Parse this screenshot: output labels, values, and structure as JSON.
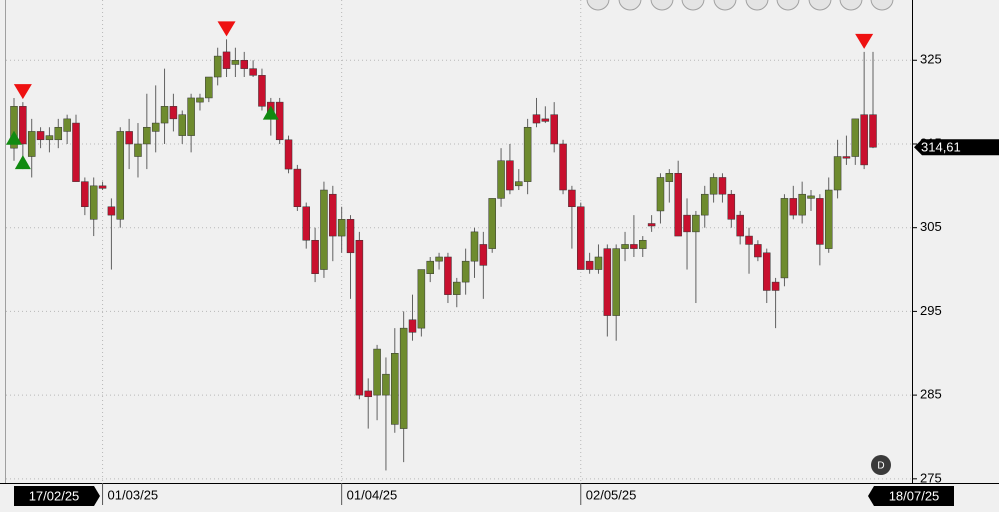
{
  "chart_data": {
    "type": "candlestick",
    "categories": [
      "17/02/25",
      null,
      null,
      null,
      null,
      null,
      null,
      null,
      null,
      null,
      "01/03/25",
      null,
      null,
      null,
      null,
      null,
      null,
      null,
      null,
      null,
      null,
      null,
      null,
      null,
      null,
      null,
      null,
      null,
      null,
      null,
      null,
      null,
      null,
      null,
      null,
      null,
      null,
      "01/04/25",
      null,
      null,
      null,
      null,
      null,
      null,
      null,
      null,
      null,
      null,
      null,
      null,
      null,
      null,
      null,
      null,
      null,
      null,
      null,
      null,
      null,
      null,
      null,
      null,
      null,
      null,
      "02/05/25",
      null,
      null,
      null,
      null,
      null,
      null,
      null,
      null,
      null,
      null,
      null,
      null,
      null,
      null,
      null,
      null,
      null,
      null,
      null,
      null,
      null,
      null,
      null,
      null,
      null,
      null,
      null,
      null,
      null,
      null,
      null,
      null,
      "18/07/25"
    ],
    "open": [
      314.5,
      319.5,
      313.5,
      316.5,
      315.5,
      315.5,
      316.5,
      317.5,
      310.5,
      306,
      310,
      307.5,
      306,
      316.5,
      313.5,
      315,
      316.5,
      317.5,
      319.5,
      316,
      316,
      320,
      320.5,
      323,
      326,
      324.5,
      325,
      324,
      323.2,
      320,
      320,
      315.5,
      312,
      307.5,
      303.5,
      300,
      309,
      304,
      306,
      303.5,
      285.5,
      285,
      285,
      281.5,
      281,
      294,
      293,
      299.5,
      301,
      301.5,
      297,
      298.5,
      301,
      303,
      302.5,
      308.5,
      313,
      310,
      310.5,
      318.5,
      318,
      318.5,
      315,
      309.5,
      307.5,
      301,
      300,
      302.5,
      294.5,
      302.5,
      303,
      302.5,
      305.5,
      307,
      310.5,
      311.5,
      306.5,
      304.5,
      306.5,
      309,
      311,
      309,
      306.5,
      304,
      303,
      302,
      298.5,
      299,
      308.5,
      306.5,
      308.5,
      308.5,
      302.5,
      309.5,
      313.5,
      313.5,
      318.5,
      318.5
    ],
    "high": [
      320.5,
      320,
      318,
      317,
      317,
      318,
      318.5,
      318.5,
      311,
      311,
      310.5,
      308.5,
      317,
      318,
      317.5,
      321,
      322,
      324,
      321,
      319,
      321,
      321,
      323,
      326.5,
      327.5,
      326.5,
      326,
      325,
      324,
      320.5,
      320.5,
      316,
      312.5,
      308,
      305,
      310.5,
      310,
      307.5,
      306.5,
      304.5,
      287,
      291,
      289.5,
      293,
      295,
      297,
      300,
      301.5,
      302,
      302,
      299,
      302.5,
      305,
      304.5,
      308.5,
      314.5,
      315,
      312,
      318,
      320.5,
      319.5,
      320,
      315.5,
      310,
      308,
      302,
      303,
      303,
      303,
      304.5,
      306.5,
      304,
      306.5,
      311.5,
      312,
      313,
      308.5,
      307,
      310,
      311.5,
      311.5,
      309.5,
      307,
      305,
      303.5,
      302.5,
      299,
      309,
      310,
      310.5,
      309.5,
      309,
      311,
      315.5,
      316,
      318,
      326,
      326
    ],
    "low": [
      313,
      312,
      311,
      314.5,
      314,
      314.5,
      315,
      310.5,
      306.5,
      304,
      309.5,
      300,
      305,
      312,
      311,
      312,
      314,
      315,
      316.5,
      315,
      314,
      319,
      320,
      322,
      323,
      323,
      323,
      323,
      319,
      316,
      315,
      311.5,
      307,
      302.5,
      298.5,
      299,
      301,
      302,
      296.5,
      284.5,
      281,
      282,
      276,
      280.5,
      277,
      291.5,
      292,
      298.5,
      300,
      296,
      295.5,
      297,
      299,
      296.5,
      302,
      307.5,
      309,
      309.5,
      309,
      317,
      317.5,
      314,
      309,
      302.5,
      300,
      299.5,
      299.5,
      292,
      291.5,
      301,
      301.5,
      301.5,
      304.5,
      305.5,
      308,
      304,
      300,
      296,
      305,
      308,
      308,
      305,
      303,
      299.5,
      301,
      296,
      293,
      298,
      306,
      305.5,
      307,
      300.5,
      302,
      308.5,
      312.5,
      312.5,
      312,
      314.5
    ],
    "close": [
      319.5,
      315,
      316.5,
      315.5,
      316,
      317,
      318,
      310.5,
      307.5,
      310,
      309.7,
      306.5,
      316.5,
      315,
      315,
      317,
      317.5,
      319.5,
      318,
      318.5,
      320.5,
      320.5,
      323,
      325.5,
      324,
      325,
      324,
      323.2,
      319.5,
      318,
      315.5,
      312,
      307.5,
      303.5,
      299.5,
      309.5,
      304,
      306,
      302,
      285,
      284.8,
      290.5,
      287.5,
      290,
      293,
      292.5,
      300,
      301,
      301.5,
      297,
      298.5,
      301,
      304.5,
      300.5,
      308.5,
      313,
      309.5,
      310.5,
      317,
      317.5,
      317.7,
      315,
      309.5,
      307.5,
      300,
      300,
      301.5,
      294.5,
      302.5,
      303,
      302.5,
      303.5,
      305.2,
      311,
      311.5,
      304,
      304.5,
      306.5,
      309,
      311,
      309,
      306,
      304,
      303,
      301.5,
      297.5,
      297.5,
      308.5,
      306.5,
      309,
      308.8,
      303,
      309.5,
      313.5,
      313.3,
      318,
      312.5,
      314.61
    ],
    "up_color": "#6e8b2e",
    "down_color": "#c8102e",
    "signals": {
      "buy": [
        0,
        1,
        29
      ],
      "sell": [
        1,
        24,
        96
      ]
    },
    "last_price": {
      "value": 314.61,
      "label": "314,61"
    },
    "ylim": [
      274.5,
      332.2
    ],
    "yticks": [
      275,
      285,
      295,
      305,
      315,
      325
    ],
    "grid": true,
    "period_button": "D"
  }
}
